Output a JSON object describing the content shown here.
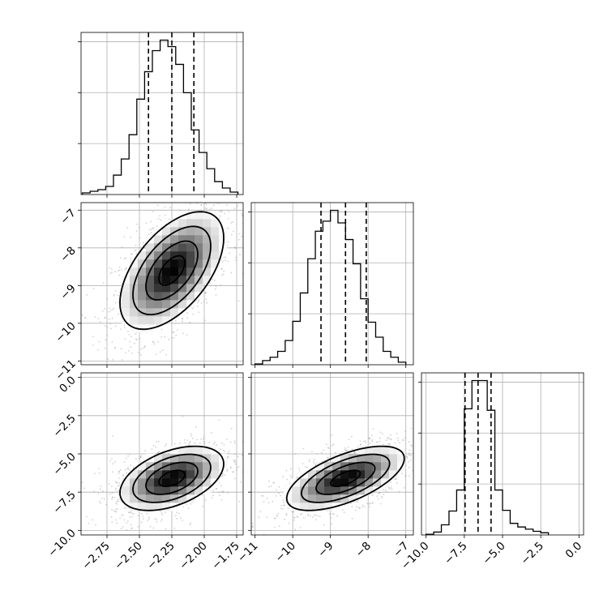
{
  "chart_data": {
    "type": "corner",
    "grid": true,
    "parameters": [
      {
        "ticks": [
          -2.75,
          -2.5,
          -2.25,
          -2.0,
          -1.75
        ],
        "tick_labels": [
          "−2.75",
          "−2.50",
          "−2.25",
          "−2.00",
          "−1.75"
        ],
        "range": [
          -2.95,
          -1.7
        ],
        "quantiles": [
          -2.43,
          -2.25,
          -2.08
        ],
        "hist_bins": [
          -2.94,
          -2.88,
          -2.82,
          -2.76,
          -2.7,
          -2.64,
          -2.58,
          -2.52,
          -2.46,
          -2.4,
          -2.34,
          -2.28,
          -2.22,
          -2.16,
          -2.1,
          -2.04,
          -1.98,
          -1.92,
          -1.86,
          -1.8,
          -1.74
        ],
        "hist_counts": [
          2,
          4,
          6,
          10,
          24,
          44,
          74,
          118,
          152,
          178,
          191,
          183,
          161,
          126,
          80,
          52,
          32,
          16,
          8,
          3
        ]
      },
      {
        "ticks": [
          -11,
          -10,
          -9,
          -8,
          -7
        ],
        "tick_labels": [
          "−11",
          "−10",
          "−9",
          "−8",
          "−7"
        ],
        "range": [
          -11.1,
          -6.8
        ],
        "quantiles": [
          -9.25,
          -8.6,
          -8.05
        ],
        "hist_bins": [
          -11.0,
          -10.8,
          -10.6,
          -10.4,
          -10.2,
          -10.0,
          -9.8,
          -9.6,
          -9.4,
          -9.2,
          -9.0,
          -8.8,
          -8.6,
          -8.4,
          -8.2,
          -8.0,
          -7.8,
          -7.6,
          -7.4,
          -7.2,
          -7.0
        ],
        "hist_counts": [
          1,
          5,
          9,
          16,
          29,
          52,
          86,
          127,
          160,
          172,
          185,
          170,
          150,
          121,
          79,
          51,
          33,
          16,
          9,
          3
        ]
      },
      {
        "ticks": [
          -10.0,
          -7.5,
          -5.0,
          -2.5,
          0.0
        ],
        "tick_labels": [
          "−10.0",
          "−7.5",
          "−5.0",
          "−2.5",
          "0.0"
        ],
        "range": [
          -10.3,
          0.3
        ],
        "quantiles": [
          -7.45,
          -6.6,
          -5.75
        ],
        "hist_bins": [
          -10.0,
          -9.5,
          -9.0,
          -8.5,
          -8.0,
          -7.5,
          -7.0,
          -6.5,
          -6.0,
          -5.5,
          -5.0,
          -4.5,
          -4.0,
          -3.5,
          -3.0,
          -2.5,
          -2.0
        ],
        "hist_counts": [
          1,
          4,
          14,
          33,
          62,
          174,
          213,
          213,
          172,
          62,
          34,
          16,
          11,
          8,
          5,
          3
        ]
      }
    ],
    "pairs": [
      {
        "x_param": 0,
        "y_param": 1,
        "mean": [
          -2.25,
          -8.6
        ],
        "std": [
          0.2,
          0.78
        ],
        "corr": 0.55,
        "peak": [
          -2.25,
          -8.6
        ]
      },
      {
        "x_param": 0,
        "y_param": 2,
        "mean": [
          -2.25,
          -6.6
        ],
        "std": [
          0.2,
          1.05
        ],
        "corr": 0.45,
        "peak": [
          -2.25,
          -6.65
        ]
      },
      {
        "x_param": 1,
        "y_param": 2,
        "mean": [
          -8.6,
          -6.6
        ],
        "std": [
          0.78,
          1.05
        ],
        "corr": 0.62,
        "peak": [
          -8.45,
          -6.4
        ]
      }
    ]
  }
}
